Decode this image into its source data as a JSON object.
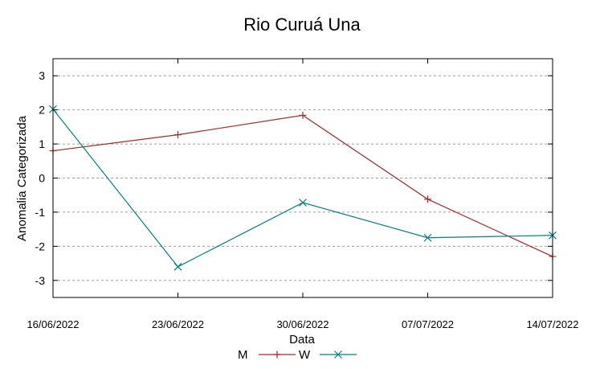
{
  "chart_data": {
    "type": "line",
    "title": "Rio Curuá Una",
    "xlabel": "Data",
    "ylabel": "Anomalia Categorizada",
    "x": [
      "16/06/2022",
      "23/06/2022",
      "30/06/2022",
      "07/07/2022",
      "14/07/2022"
    ],
    "ylim": [
      -3.5,
      3.5
    ],
    "yticks": [
      -3,
      -2,
      -1,
      0,
      1,
      2,
      3
    ],
    "ytick_labels": [
      "-3",
      "-2",
      "-1",
      "0",
      "1",
      "2",
      "3"
    ],
    "grid": true,
    "legend_position": "bottom-center",
    "series": [
      {
        "name": "M",
        "color": "#a52a2a",
        "marker": "plus",
        "values": [
          0.8,
          1.27,
          1.84,
          -0.62,
          -2.3
        ]
      },
      {
        "name": "W",
        "color": "#008080",
        "marker": "cross",
        "values": [
          2.02,
          -2.6,
          -0.72,
          -1.75,
          -1.68
        ]
      }
    ]
  }
}
